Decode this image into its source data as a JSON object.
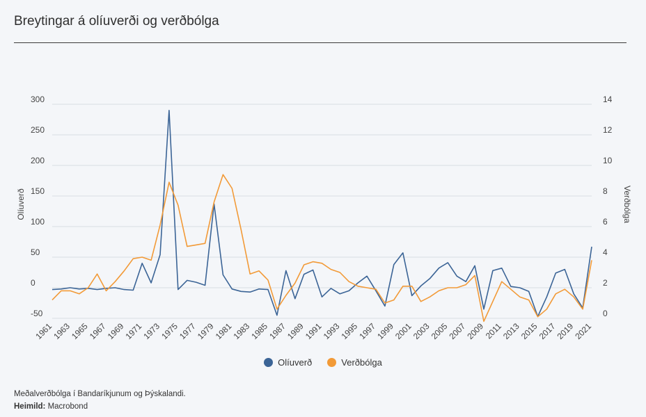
{
  "chart_data": {
    "type": "line",
    "title": "Breytingar á olíuverði og verðbólga",
    "ylabel_left": "Olíuverð",
    "ylabel_right": "Verðbólga",
    "ylim_left": [
      -50,
      300
    ],
    "ylim_right": [
      0,
      14
    ],
    "yticks_left": [
      -50,
      0,
      50,
      100,
      150,
      200,
      250,
      300
    ],
    "yticks_right": [
      0,
      2,
      4,
      6,
      8,
      10,
      12,
      14
    ],
    "grid": true,
    "legend_position": "bottom",
    "x": [
      1961,
      1962,
      1963,
      1964,
      1965,
      1966,
      1967,
      1968,
      1969,
      1970,
      1971,
      1972,
      1973,
      1974,
      1975,
      1976,
      1977,
      1978,
      1979,
      1980,
      1981,
      1982,
      1983,
      1984,
      1985,
      1986,
      1987,
      1988,
      1989,
      1990,
      1991,
      1992,
      1993,
      1994,
      1995,
      1996,
      1997,
      1998,
      1999,
      2000,
      2001,
      2002,
      2003,
      2004,
      2005,
      2006,
      2007,
      2008,
      2009,
      2010,
      2011,
      2012,
      2013,
      2014,
      2015,
      2016,
      2017,
      2018,
      2019,
      2020,
      2021
    ],
    "xtick_labels": [
      "1961",
      "1963",
      "1965",
      "1967",
      "1969",
      "1971",
      "1973",
      "1975",
      "1977",
      "1979",
      "1981",
      "1983",
      "1985",
      "1987",
      "1989",
      "1991",
      "1993",
      "1995",
      "1997",
      "1999",
      "2001",
      "2003",
      "2005",
      "2007",
      "2009",
      "2011",
      "2013",
      "2015",
      "2017",
      "2019",
      "2021"
    ],
    "series": [
      {
        "name": "Olíuverð",
        "axis": "left",
        "color": "#3b6496",
        "values": [
          -3,
          -2,
          0,
          -2,
          -1,
          -3,
          -1,
          0,
          -3,
          -4,
          40,
          8,
          54,
          290,
          -3,
          12,
          9,
          4,
          137,
          21,
          -2,
          -6,
          -7,
          -2,
          -3,
          -45,
          28,
          -18,
          22,
          29,
          -15,
          -1,
          -10,
          -5,
          8,
          19,
          -5,
          -30,
          38,
          57,
          -13,
          3,
          15,
          32,
          41,
          19,
          10,
          36,
          -35,
          28,
          32,
          2,
          0,
          -6,
          -47,
          -15,
          24,
          30,
          -10,
          -33,
          67
        ]
      },
      {
        "name": "Verðbólga",
        "axis": "right",
        "color": "#f29a37",
        "values": [
          1.2,
          1.8,
          1.8,
          1.6,
          2.0,
          2.9,
          1.8,
          2.4,
          3.1,
          3.9,
          4.0,
          3.8,
          6.1,
          8.9,
          7.4,
          4.7,
          4.8,
          4.9,
          7.6,
          9.4,
          8.5,
          5.8,
          2.9,
          3.1,
          2.5,
          0.6,
          1.5,
          2.3,
          3.5,
          3.7,
          3.6,
          3.2,
          3.0,
          2.4,
          2.1,
          2.0,
          1.9,
          1.0,
          1.2,
          2.1,
          2.1,
          1.1,
          1.4,
          1.8,
          2.0,
          2.0,
          2.2,
          2.8,
          -0.2,
          1.1,
          2.4,
          1.9,
          1.4,
          1.2,
          0.1,
          0.6,
          1.6,
          1.9,
          1.4,
          0.6,
          3.8
        ]
      }
    ]
  },
  "footer": {
    "note": "Meðalverðbólga í Bandaríkjunum og Þýskalandi.",
    "source_label": "Heimild:",
    "source_value": " Macrobond"
  }
}
